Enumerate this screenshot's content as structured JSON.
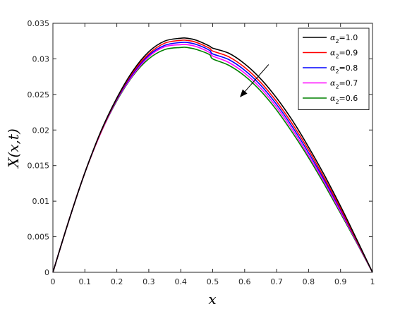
{
  "chart_data": {
    "type": "line",
    "xlabel": "x",
    "ylabel": "X(x,t)",
    "xlim": [
      0,
      1
    ],
    "ylim": [
      0,
      0.035
    ],
    "xticks": [
      "0",
      "0.1",
      "0.2",
      "0.3",
      "0.4",
      "0.5",
      "0.6",
      "0.7",
      "0.8",
      "0.9",
      "1"
    ],
    "yticks": [
      "0",
      "0.005",
      "0.01",
      "0.015",
      "0.02",
      "0.025",
      "0.03",
      "0.035"
    ],
    "grid": false,
    "legend_position": "top-right",
    "legend_symbol": "α",
    "legend_subscript": "2",
    "x": [
      0,
      0.05,
      0.1,
      0.15,
      0.2,
      0.25,
      0.3,
      0.35,
      0.4,
      0.42,
      0.45,
      0.49,
      0.5,
      0.55,
      0.6,
      0.65,
      0.7,
      0.75,
      0.8,
      0.85,
      0.9,
      0.95,
      1.0
    ],
    "series": [
      {
        "name": "=1.0",
        "color": "#000000",
        "values": [
          0,
          0.0073,
          0.014,
          0.0198,
          0.0245,
          0.0283,
          0.031,
          0.0325,
          0.0329,
          0.0329,
          0.0326,
          0.0318,
          0.0315,
          0.0308,
          0.0293,
          0.0272,
          0.0245,
          0.0213,
          0.0176,
          0.0136,
          0.0093,
          0.0047,
          0
        ]
      },
      {
        "name": "=0.9",
        "color": "#ff0000",
        "values": [
          0,
          0.0073,
          0.014,
          0.0197,
          0.0244,
          0.0281,
          0.0307,
          0.0322,
          0.0326,
          0.0326,
          0.0323,
          0.0315,
          0.0311,
          0.0303,
          0.0288,
          0.0267,
          0.024,
          0.0208,
          0.0172,
          0.0132,
          0.009,
          0.0045,
          0
        ]
      },
      {
        "name": "=0.8",
        "color": "#0000ff",
        "values": [
          0,
          0.0073,
          0.014,
          0.0197,
          0.0243,
          0.0279,
          0.0305,
          0.0319,
          0.0323,
          0.0323,
          0.032,
          0.0312,
          0.0307,
          0.0299,
          0.0284,
          0.0263,
          0.0236,
          0.0204,
          0.0168,
          0.0129,
          0.0088,
          0.0044,
          0
        ]
      },
      {
        "name": "=0.7",
        "color": "#ff00ff",
        "values": [
          0,
          0.0073,
          0.014,
          0.0196,
          0.0242,
          0.0277,
          0.0303,
          0.0317,
          0.032,
          0.032,
          0.0317,
          0.0309,
          0.0304,
          0.0295,
          0.028,
          0.0259,
          0.0232,
          0.02,
          0.0164,
          0.0126,
          0.0085,
          0.0043,
          0
        ]
      },
      {
        "name": "=0.6",
        "color": "#008000",
        "values": [
          0,
          0.0073,
          0.014,
          0.0196,
          0.0241,
          0.0276,
          0.03,
          0.0313,
          0.0316,
          0.0316,
          0.0313,
          0.0306,
          0.03,
          0.0291,
          0.0276,
          0.0255,
          0.0228,
          0.0196,
          0.0161,
          0.0123,
          0.0083,
          0.0042,
          0
        ]
      }
    ],
    "annotations": [
      {
        "type": "arrow",
        "from": [
          0.675,
          0.0292
        ],
        "to": [
          0.585,
          0.0246
        ],
        "meaning": "decreasing alpha_2"
      }
    ]
  }
}
